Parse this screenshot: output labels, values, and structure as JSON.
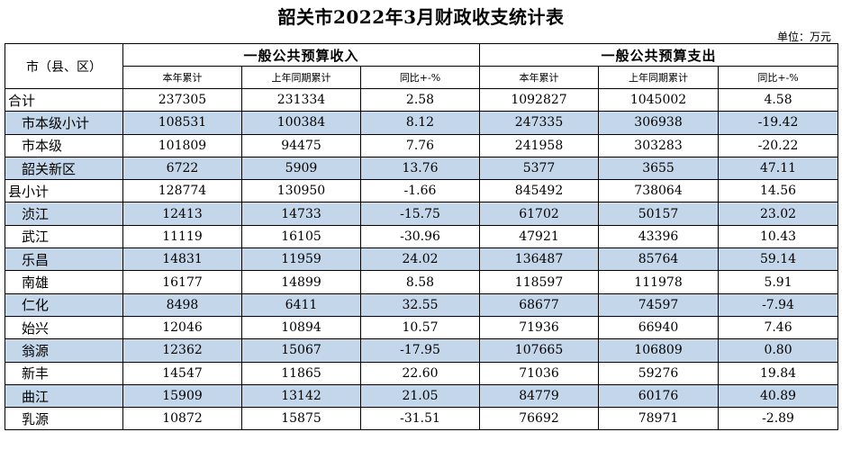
{
  "title": "韶关市2022年3月财政收支统计表",
  "unit_label": "单位：万元",
  "header": {
    "region_col": "市（县、区）",
    "revenue_group": "一般公共预算收入",
    "expenditure_group": "一般公共预算支出",
    "cols": [
      "本年累计",
      "上年同期累计",
      "同比+-%",
      "本年累计",
      "上年同期累计",
      "同比+-%"
    ]
  },
  "rows": [
    {
      "name": "合计",
      "indent": "top",
      "shaded": false,
      "values": [
        "237305",
        "231334",
        "2.58",
        "1092827",
        "1045002",
        "4.58"
      ]
    },
    {
      "name": "市本级小计",
      "indent": "sub",
      "shaded": true,
      "values": [
        "108531",
        "100384",
        "8.12",
        "247335",
        "306938",
        "-19.42"
      ]
    },
    {
      "name": "市本级",
      "indent": "sub",
      "shaded": false,
      "values": [
        "101809",
        "94475",
        "7.76",
        "241958",
        "303283",
        "-20.22"
      ]
    },
    {
      "name": "韶关新区",
      "indent": "sub",
      "shaded": true,
      "values": [
        "6722",
        "5909",
        "13.76",
        "5377",
        "3655",
        "47.11"
      ]
    },
    {
      "name": "县小计",
      "indent": "top",
      "shaded": false,
      "values": [
        "128774",
        "130950",
        "-1.66",
        "845492",
        "738064",
        "14.56"
      ]
    },
    {
      "name": "浈江",
      "indent": "sub",
      "shaded": true,
      "values": [
        "12413",
        "14733",
        "-15.75",
        "61702",
        "50157",
        "23.02"
      ]
    },
    {
      "name": "武江",
      "indent": "sub",
      "shaded": false,
      "values": [
        "11119",
        "16105",
        "-30.96",
        "47921",
        "43396",
        "10.43"
      ]
    },
    {
      "name": "乐昌",
      "indent": "sub",
      "shaded": true,
      "values": [
        "14831",
        "11959",
        "24.02",
        "136487",
        "85764",
        "59.14"
      ]
    },
    {
      "name": "南雄",
      "indent": "sub",
      "shaded": false,
      "values": [
        "16177",
        "14899",
        "8.58",
        "118597",
        "111978",
        "5.91"
      ]
    },
    {
      "name": "仁化",
      "indent": "sub",
      "shaded": true,
      "values": [
        "8498",
        "6411",
        "32.55",
        "68677",
        "74597",
        "-7.94"
      ]
    },
    {
      "name": "始兴",
      "indent": "sub",
      "shaded": false,
      "values": [
        "12046",
        "10894",
        "10.57",
        "71936",
        "66940",
        "7.46"
      ]
    },
    {
      "name": "翁源",
      "indent": "sub",
      "shaded": true,
      "values": [
        "12362",
        "15067",
        "-17.95",
        "107665",
        "106809",
        "0.80"
      ]
    },
    {
      "name": "新丰",
      "indent": "sub",
      "shaded": false,
      "values": [
        "14547",
        "11865",
        "22.60",
        "71036",
        "59276",
        "19.84"
      ]
    },
    {
      "name": "曲江",
      "indent": "sub",
      "shaded": true,
      "values": [
        "15909",
        "13142",
        "21.05",
        "84779",
        "60176",
        "40.89"
      ]
    },
    {
      "name": "乳源",
      "indent": "sub",
      "shaded": false,
      "values": [
        "10872",
        "15875",
        "-31.51",
        "76692",
        "78971",
        "-2.89"
      ]
    }
  ]
}
